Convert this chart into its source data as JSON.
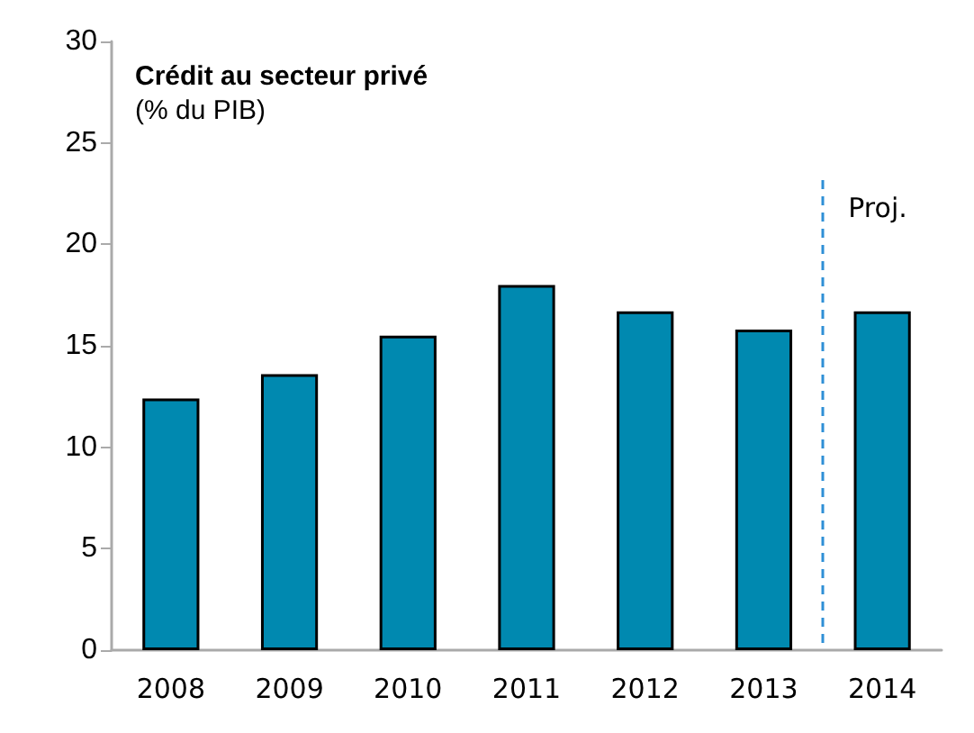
{
  "chart_data": {
    "type": "bar",
    "title": "Crédit au secteur privé",
    "subtitle": "(% du PIB)",
    "x": [
      2008,
      2009,
      2010,
      2011,
      2012,
      2013,
      2014
    ],
    "values": [
      12.4,
      13.6,
      15.5,
      18.0,
      16.7,
      15.8,
      16.7
    ],
    "color": "#0089b0",
    "xlim": [
      2007.5,
      2014.5
    ],
    "xticks": [
      2008,
      2009,
      2010,
      2011,
      2012,
      2013,
      2014
    ],
    "ylim": [
      0,
      30
    ],
    "yticks": [
      0,
      5,
      10,
      15,
      20,
      25,
      30
    ],
    "ref_lines": [
      {
        "axis": "x",
        "value": 2013.5,
        "label": "Proj.",
        "color": "#2e8fd6",
        "line_style": "dashed"
      }
    ],
    "grid": false
  }
}
